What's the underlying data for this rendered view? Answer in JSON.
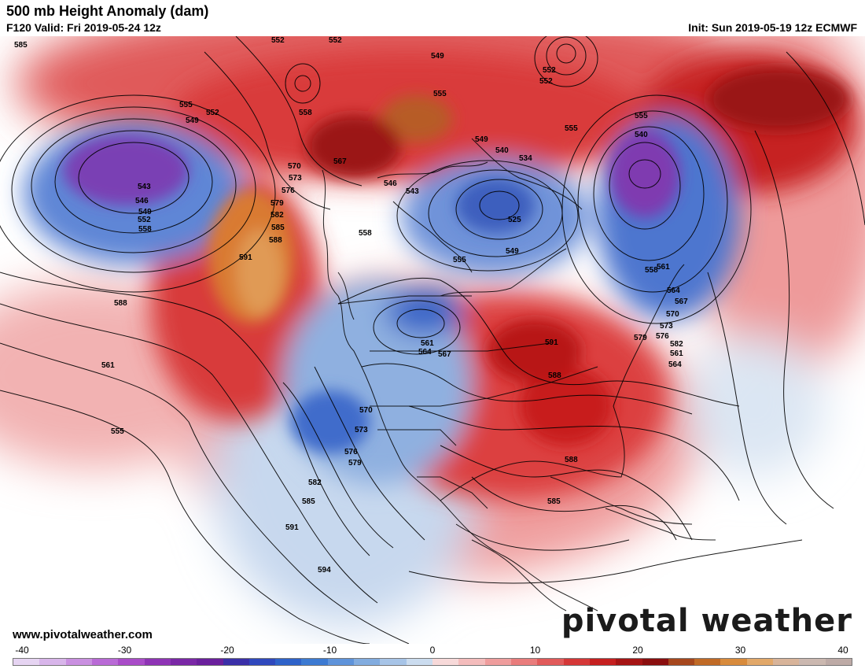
{
  "header": {
    "title": "500 mb Height Anomaly (dam)",
    "valid": "F120 Valid: Fri 2019-05-24 12z",
    "init": "Init: Sun 2019-05-19 12z ECMWF"
  },
  "footer": {
    "site": "www.pivotalweather.com",
    "brand": "pivotal weather"
  },
  "colorbar": {
    "ticks": [
      "-40",
      "-30",
      "-20",
      "-10",
      "0",
      "10",
      "20",
      "30",
      "40"
    ]
  },
  "contour_labels": [
    "585",
    "552",
    "552",
    "549",
    "555",
    "552",
    "549",
    "543",
    "546",
    "549",
    "552",
    "558",
    "555",
    "558",
    "552",
    "555",
    "549",
    "540",
    "534",
    "546",
    "543",
    "525",
    "555",
    "549",
    "552",
    "540",
    "555",
    "558",
    "561",
    "564",
    "567",
    "570",
    "573",
    "576",
    "579",
    "582",
    "561",
    "564",
    "567",
    "570",
    "573",
    "576",
    "579",
    "582",
    "585",
    "588",
    "591",
    "588",
    "561",
    "555",
    "558",
    "561",
    "564",
    "567",
    "570",
    "573",
    "576",
    "579",
    "582",
    "585",
    "591",
    "594",
    "591",
    "588",
    "588",
    "585"
  ],
  "colors": {
    "neg_strong": "#7b1fa2",
    "neg": "#2f5fc4",
    "neg_light": "#b9cfea",
    "pos_light": "#f6c6c6",
    "pos": "#d42a2a",
    "pos_strong": "#8a0f0f",
    "pos_extreme": "#d1782a"
  }
}
